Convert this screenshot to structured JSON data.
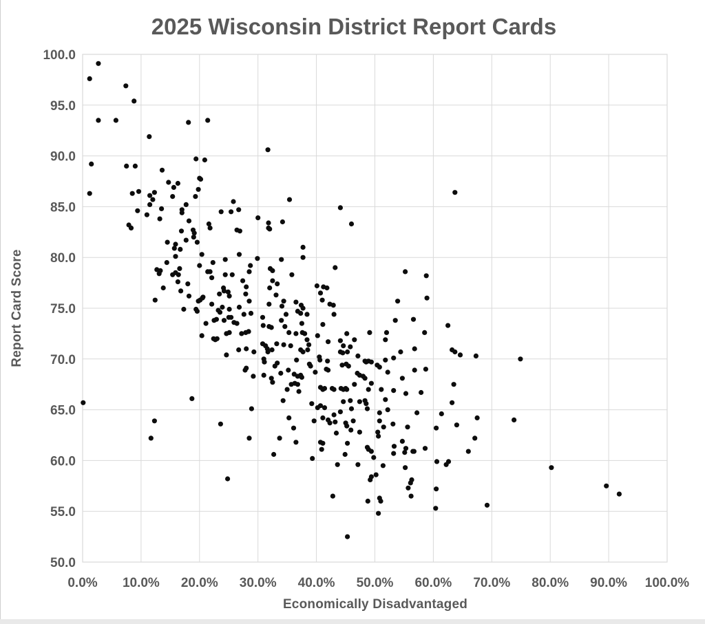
{
  "title": "2025 Wisconsin District Report Cards",
  "colors": {
    "text": "#595959",
    "grid": "#d9d9d9",
    "marker": "#0d0d0d",
    "background": "#ffffff",
    "bottom_strip": "#e9e9e9"
  },
  "chart_data": {
    "type": "scatter",
    "title": "2025 Wisconsin District Report Cards",
    "xlabel": "Economically Disadvantaged",
    "ylabel": "Report Card Score",
    "xlim": [
      0,
      100
    ],
    "ylim": [
      50,
      100
    ],
    "x_tick_values": [
      0,
      10,
      20,
      30,
      40,
      50,
      60,
      70,
      80,
      90,
      100
    ],
    "x_ticks": [
      "0.0%",
      "10.0%",
      "20.0%",
      "30.0%",
      "40.0%",
      "50.0%",
      "60.0%",
      "70.0%",
      "80.0%",
      "90.0%",
      "100.0%"
    ],
    "y_tick_values": [
      50,
      55,
      60,
      65,
      70,
      75,
      80,
      85,
      90,
      95,
      100
    ],
    "y_ticks": [
      "50.0",
      "55.0",
      "60.0",
      "65.0",
      "70.0",
      "75.0",
      "80.0",
      "85.0",
      "90.0",
      "95.0",
      "100.0"
    ],
    "grid": true,
    "legend": false,
    "marker_radius": 3.6,
    "points": [
      [
        2.7,
        99.1
      ],
      [
        1.2,
        97.6
      ],
      [
        7.4,
        96.9
      ],
      [
        8.8,
        95.4
      ],
      [
        2.7,
        93.5
      ],
      [
        5.7,
        93.5
      ],
      [
        18.1,
        93.3
      ],
      [
        21.4,
        93.5
      ],
      [
        11.4,
        91.9
      ],
      [
        31.7,
        90.6
      ],
      [
        19.4,
        89.7
      ],
      [
        20.9,
        89.6
      ],
      [
        1.5,
        89.2
      ],
      [
        7.5,
        89.0
      ],
      [
        9.0,
        89.0
      ],
      [
        13.6,
        88.6
      ],
      [
        20.0,
        87.8
      ],
      [
        20.2,
        87.7
      ],
      [
        14.7,
        87.4
      ],
      [
        16.3,
        87.3
      ],
      [
        15.6,
        86.9
      ],
      [
        19.8,
        86.7
      ],
      [
        1.2,
        86.3
      ],
      [
        8.5,
        86.3
      ],
      [
        9.6,
        86.5
      ],
      [
        12.3,
        86.4
      ],
      [
        11.5,
        86.1
      ],
      [
        12.0,
        85.7
      ],
      [
        15.4,
        86.0
      ],
      [
        25.8,
        85.5
      ],
      [
        11.5,
        85.2
      ],
      [
        17.7,
        85.2
      ],
      [
        19.3,
        86.0
      ],
      [
        13.5,
        84.8
      ],
      [
        17.0,
        84.7
      ],
      [
        9.4,
        84.6
      ],
      [
        23.7,
        84.5
      ],
      [
        25.4,
        84.5
      ],
      [
        26.7,
        84.7
      ],
      [
        11.0,
        84.2
      ],
      [
        17.0,
        84.4
      ],
      [
        18.2,
        83.6
      ],
      [
        30.0,
        83.9
      ],
      [
        13.2,
        83.8
      ],
      [
        31.8,
        83.4
      ],
      [
        7.9,
        83.2
      ],
      [
        21.6,
        83.3
      ],
      [
        21.8,
        82.9
      ],
      [
        35.4,
        85.7
      ],
      [
        63.7,
        86.4
      ],
      [
        44.1,
        84.9
      ],
      [
        34.2,
        83.5
      ],
      [
        46.0,
        83.3
      ],
      [
        32.0,
        82.8
      ],
      [
        16.9,
        82.6
      ],
      [
        8.3,
        82.9
      ],
      [
        18.9,
        82.7
      ],
      [
        19.1,
        82.4
      ],
      [
        19.0,
        82.0
      ],
      [
        26.4,
        82.7
      ],
      [
        26.9,
        82.6
      ],
      [
        31.8,
        82.9
      ],
      [
        14.5,
        81.5
      ],
      [
        17.7,
        81.7
      ],
      [
        19.6,
        81.5
      ],
      [
        15.9,
        81.3
      ],
      [
        15.7,
        80.9
      ],
      [
        16.7,
        80.8
      ],
      [
        15.9,
        80.1
      ],
      [
        20.4,
        80.3
      ],
      [
        26.8,
        80.3
      ],
      [
        29.9,
        79.9
      ],
      [
        14.4,
        79.5
      ],
      [
        22.3,
        79.5
      ],
      [
        24.4,
        79.8
      ],
      [
        20.0,
        79.2
      ],
      [
        21.4,
        78.6
      ],
      [
        21.8,
        78.6
      ],
      [
        22.1,
        78.0
      ],
      [
        28.7,
        79.2
      ],
      [
        28.5,
        78.6
      ],
      [
        32.1,
        78.9
      ],
      [
        32.5,
        78.7
      ],
      [
        12.7,
        78.8
      ],
      [
        13.3,
        78.7
      ],
      [
        13.1,
        78.4
      ],
      [
        15.4,
        78.3
      ],
      [
        15.9,
        78.5
      ],
      [
        16.6,
        78.9
      ],
      [
        16.4,
        78.3
      ],
      [
        24.4,
        78.3
      ],
      [
        25.6,
        78.3
      ],
      [
        16.3,
        77.6
      ],
      [
        18.0,
        77.4
      ],
      [
        27.4,
        77.7
      ],
      [
        28.0,
        77.1
      ],
      [
        13.8,
        77.0
      ],
      [
        16.8,
        76.7
      ],
      [
        32.0,
        77.0
      ],
      [
        32.5,
        77.7
      ],
      [
        18.2,
        76.2
      ],
      [
        20.6,
        76.1
      ],
      [
        23.4,
        76.4
      ],
      [
        24.1,
        77.0
      ],
      [
        24.2,
        76.7
      ],
      [
        24.9,
        76.6
      ],
      [
        25.1,
        76.2
      ],
      [
        27.9,
        76.4
      ],
      [
        28.5,
        75.7
      ],
      [
        12.4,
        75.8
      ],
      [
        19.8,
        75.7
      ],
      [
        20.1,
        75.8
      ],
      [
        20.5,
        76.0
      ],
      [
        22.1,
        75.4
      ],
      [
        23.2,
        74.8
      ],
      [
        23.5,
        74.6
      ],
      [
        23.9,
        75.1
      ],
      [
        25.1,
        74.9
      ],
      [
        26.8,
        75.1
      ],
      [
        27.6,
        74.4
      ],
      [
        28.8,
        74.5
      ],
      [
        30.8,
        74.1
      ],
      [
        17.3,
        74.9
      ],
      [
        19.4,
        74.9
      ],
      [
        19.6,
        74.7
      ],
      [
        21.1,
        73.5
      ],
      [
        22.5,
        73.8
      ],
      [
        22.9,
        73.9
      ],
      [
        24.2,
        73.8
      ],
      [
        25.0,
        74.1
      ],
      [
        25.4,
        74.1
      ],
      [
        25.9,
        73.6
      ],
      [
        26.4,
        73.5
      ],
      [
        20.4,
        72.3
      ],
      [
        22.4,
        72.0
      ],
      [
        22.7,
        71.9
      ],
      [
        23.0,
        72.0
      ],
      [
        24.6,
        72.5
      ],
      [
        25.1,
        72.6
      ],
      [
        27.2,
        72.5
      ],
      [
        27.9,
        72.6
      ],
      [
        28.4,
        72.7
      ],
      [
        30.9,
        73.3
      ],
      [
        31.9,
        73.2
      ],
      [
        32.3,
        73.1
      ],
      [
        30.8,
        71.5
      ],
      [
        31.3,
        71.3
      ],
      [
        31.6,
        71.0
      ],
      [
        24.6,
        70.4
      ],
      [
        26.7,
        70.9
      ],
      [
        28.0,
        71.0
      ],
      [
        29.3,
        70.7
      ],
      [
        31.0,
        70.0
      ],
      [
        31.7,
        70.7
      ],
      [
        32.4,
        70.9
      ],
      [
        31.1,
        69.7
      ],
      [
        28.0,
        69.1
      ],
      [
        27.8,
        68.9
      ],
      [
        29.2,
        68.3
      ],
      [
        31.0,
        68.4
      ],
      [
        32.3,
        68.1
      ],
      [
        32.5,
        67.7
      ],
      [
        31.9,
        75.4
      ],
      [
        42.3,
        75.4
      ],
      [
        42.9,
        75.3
      ],
      [
        41.2,
        77.1
      ],
      [
        37.7,
        81.0
      ],
      [
        37.7,
        80.0
      ],
      [
        34.0,
        79.8
      ],
      [
        43.2,
        79.0
      ],
      [
        35.8,
        78.3
      ],
      [
        55.2,
        78.6
      ],
      [
        58.8,
        78.2
      ],
      [
        33.3,
        77.4
      ],
      [
        40.1,
        77.2
      ],
      [
        41.8,
        77.0
      ],
      [
        40.7,
        76.5
      ],
      [
        33.1,
        76.3
      ],
      [
        41.0,
        75.8
      ],
      [
        53.9,
        75.7
      ],
      [
        58.9,
        76.0
      ],
      [
        34.4,
        75.7
      ],
      [
        34.1,
        75.2
      ],
      [
        36.5,
        75.6
      ],
      [
        37.4,
        75.3
      ],
      [
        37.7,
        75.0
      ],
      [
        36.8,
        74.7
      ],
      [
        37.3,
        74.5
      ],
      [
        34.8,
        74.4
      ],
      [
        38.4,
        74.4
      ],
      [
        43.0,
        74.4
      ],
      [
        34.0,
        73.8
      ],
      [
        37.5,
        73.5
      ],
      [
        34.6,
        73.2
      ],
      [
        41.1,
        73.4
      ],
      [
        53.5,
        73.8
      ],
      [
        56.6,
        73.9
      ],
      [
        62.5,
        73.3
      ],
      [
        35.3,
        72.6
      ],
      [
        36.5,
        72.5
      ],
      [
        37.6,
        72.6
      ],
      [
        38.0,
        72.5
      ],
      [
        40.2,
        72.3
      ],
      [
        45.2,
        72.5
      ],
      [
        49.1,
        72.6
      ],
      [
        52.0,
        72.6
      ],
      [
        51.8,
        71.9
      ],
      [
        58.5,
        72.6
      ],
      [
        38.4,
        71.9
      ],
      [
        38.7,
        71.4
      ],
      [
        42.0,
        71.7
      ],
      [
        44.1,
        71.8
      ],
      [
        46.5,
        71.9
      ],
      [
        33.2,
        71.5
      ],
      [
        34.4,
        71.4
      ],
      [
        35.6,
        71.3
      ],
      [
        44.6,
        71.3
      ],
      [
        45.8,
        71.2
      ],
      [
        37.3,
        70.9
      ],
      [
        37.7,
        70.7
      ],
      [
        38.5,
        70.9
      ],
      [
        44.1,
        70.7
      ],
      [
        44.5,
        70.6
      ],
      [
        45.3,
        70.7
      ],
      [
        56.8,
        71.0
      ],
      [
        63.2,
        70.9
      ],
      [
        63.7,
        70.7
      ],
      [
        64.6,
        70.4
      ],
      [
        67.3,
        70.3
      ],
      [
        36.6,
        69.9
      ],
      [
        40.5,
        70.2
      ],
      [
        40.6,
        69.9
      ],
      [
        54.4,
        70.7
      ],
      [
        41.9,
        69.8
      ],
      [
        47.1,
        70.3
      ],
      [
        51.8,
        69.9
      ],
      [
        53.2,
        70.1
      ],
      [
        33.3,
        69.6
      ],
      [
        32.9,
        69.3
      ],
      [
        38.8,
        69.5
      ],
      [
        39.0,
        69.3
      ],
      [
        44.4,
        69.4
      ],
      [
        45.1,
        69.5
      ],
      [
        45.5,
        69.3
      ],
      [
        48.3,
        69.8
      ],
      [
        48.5,
        69.7
      ],
      [
        48.9,
        69.8
      ],
      [
        49.4,
        69.7
      ],
      [
        50.4,
        69.4
      ],
      [
        50.8,
        69.2
      ],
      [
        56.8,
        68.9
      ],
      [
        58.7,
        69.0
      ],
      [
        33.9,
        68.6
      ],
      [
        35.2,
        68.9
      ],
      [
        36.2,
        68.5
      ],
      [
        36.8,
        68.3
      ],
      [
        37.3,
        68.4
      ],
      [
        37.5,
        68.2
      ],
      [
        39.8,
        68.7
      ],
      [
        41.7,
        69.0
      ],
      [
        42.0,
        68.9
      ],
      [
        47.0,
        68.6
      ],
      [
        47.4,
        68.4
      ],
      [
        48.0,
        68.3
      ],
      [
        48.3,
        68.1
      ],
      [
        52.2,
        68.7
      ],
      [
        54.7,
        68.1
      ],
      [
        63.5,
        67.5
      ],
      [
        35.7,
        67.5
      ],
      [
        36.3,
        67.6
      ],
      [
        36.8,
        67.5
      ],
      [
        35.0,
        67.0
      ],
      [
        37.0,
        66.8
      ],
      [
        40.7,
        67.2
      ],
      [
        41.1,
        67.0
      ],
      [
        41.4,
        67.1
      ],
      [
        42.7,
        67.1
      ],
      [
        43.0,
        67.0
      ],
      [
        44.2,
        67.1
      ],
      [
        44.6,
        67.0
      ],
      [
        45.0,
        67.1
      ],
      [
        45.2,
        67.0
      ],
      [
        46.5,
        67.5
      ],
      [
        48.9,
        67.0
      ],
      [
        49.4,
        67.6
      ],
      [
        51.1,
        67.0
      ],
      [
        53.2,
        66.9
      ],
      [
        55.3,
        66.6
      ],
      [
        57.9,
        66.7
      ],
      [
        74.9,
        70.0
      ],
      [
        0.1,
        65.7
      ],
      [
        18.7,
        66.1
      ],
      [
        28.9,
        65.1
      ],
      [
        12.3,
        63.9
      ],
      [
        23.6,
        63.6
      ],
      [
        11.7,
        62.2
      ],
      [
        28.5,
        62.2
      ],
      [
        32.7,
        60.6
      ],
      [
        24.8,
        58.2
      ],
      [
        34.3,
        65.9
      ],
      [
        39.2,
        65.6
      ],
      [
        40.2,
        65.2
      ],
      [
        40.7,
        65.4
      ],
      [
        41.4,
        65.2
      ],
      [
        44.6,
        65.8
      ],
      [
        45.8,
        65.9
      ],
      [
        46.0,
        65.1
      ],
      [
        47.4,
        65.8
      ],
      [
        48.3,
        65.9
      ],
      [
        48.5,
        65.6
      ],
      [
        48.7,
        65.1
      ],
      [
        51.8,
        66.0
      ],
      [
        52.2,
        65.0
      ],
      [
        63.2,
        65.7
      ],
      [
        61.4,
        64.6
      ],
      [
        57.2,
        64.7
      ],
      [
        50.8,
        64.7
      ],
      [
        35.3,
        64.2
      ],
      [
        39.6,
        63.9
      ],
      [
        41.1,
        64.2
      ],
      [
        42.0,
        64.0
      ],
      [
        42.3,
        63.7
      ],
      [
        43.0,
        64.5
      ],
      [
        43.2,
        63.8
      ],
      [
        44.1,
        64.8
      ],
      [
        45.0,
        63.7
      ],
      [
        45.2,
        63.4
      ],
      [
        46.3,
        63.9
      ],
      [
        36.1,
        63.2
      ],
      [
        43.4,
        62.7
      ],
      [
        45.9,
        63.0
      ],
      [
        47.4,
        62.8
      ],
      [
        33.7,
        62.2
      ],
      [
        36.5,
        61.8
      ],
      [
        40.7,
        61.8
      ],
      [
        41.1,
        61.7
      ],
      [
        40.9,
        61.1
      ],
      [
        45.3,
        61.7
      ],
      [
        44.9,
        60.6
      ],
      [
        48.7,
        61.3
      ],
      [
        48.9,
        61.1
      ],
      [
        49.4,
        60.9
      ],
      [
        49.8,
        60.3
      ],
      [
        50.5,
        62.8
      ],
      [
        50.6,
        62.4
      ],
      [
        50.8,
        63.9
      ],
      [
        51.5,
        63.3
      ],
      [
        53.1,
        63.6
      ],
      [
        53.3,
        61.4
      ],
      [
        53.2,
        60.7
      ],
      [
        54.7,
        61.9
      ],
      [
        55.1,
        60.8
      ],
      [
        55.3,
        61.2
      ],
      [
        55.6,
        63.3
      ],
      [
        56.5,
        60.9
      ],
      [
        56.7,
        60.9
      ],
      [
        58.6,
        61.2
      ],
      [
        60.5,
        63.2
      ],
      [
        60.6,
        59.9
      ],
      [
        62.2,
        59.6
      ],
      [
        62.6,
        59.9
      ],
      [
        64.0,
        63.5
      ],
      [
        66.0,
        60.9
      ],
      [
        67.1,
        62.2
      ],
      [
        67.5,
        64.2
      ],
      [
        39.3,
        60.2
      ],
      [
        43.6,
        59.6
      ],
      [
        47.1,
        59.6
      ],
      [
        51.4,
        59.5
      ],
      [
        55.2,
        59.3
      ],
      [
        49.2,
        58.1
      ],
      [
        49.4,
        58.4
      ],
      [
        50.2,
        58.6
      ],
      [
        55.7,
        57.3
      ],
      [
        56.1,
        57.8
      ],
      [
        56.3,
        58.1
      ],
      [
        60.5,
        57.2
      ],
      [
        42.8,
        56.5
      ],
      [
        48.8,
        56.0
      ],
      [
        50.8,
        56.3
      ],
      [
        51.0,
        56.0
      ],
      [
        56.2,
        56.5
      ],
      [
        60.4,
        55.3
      ],
      [
        50.6,
        54.8
      ],
      [
        45.3,
        52.5
      ],
      [
        73.8,
        64.0
      ],
      [
        80.2,
        59.3
      ],
      [
        89.6,
        57.5
      ],
      [
        91.8,
        56.7
      ],
      [
        69.2,
        55.6
      ]
    ]
  }
}
